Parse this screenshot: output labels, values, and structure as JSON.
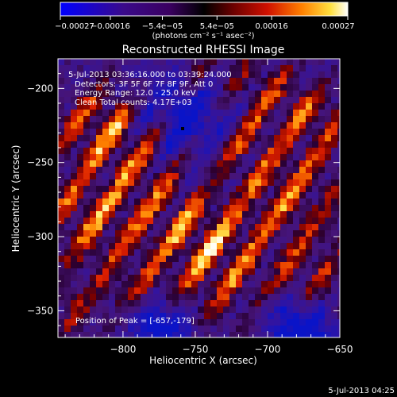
{
  "chart_data": {
    "type": "heatmap",
    "title": "Reconstructed RHESSI Image",
    "xlabel": "Heliocentric X (arcsec)",
    "ylabel": "Heliocentric Y (arcsec)",
    "xlim": [
      -845,
      -650
    ],
    "ylim": [
      -368,
      -180
    ],
    "x_ticks": [
      -800,
      -750,
      -700,
      -650
    ],
    "x_tick_labels": [
      "−800",
      "−750",
      "−700",
      "−650"
    ],
    "y_ticks": [
      -200,
      -250,
      -300,
      -350
    ],
    "y_tick_labels": [
      "−200",
      "−250",
      "−300",
      "−350"
    ],
    "colorbar": {
      "ticks": [
        -0.00027,
        -0.00016,
        -5.4e-05,
        5.4e-05,
        0.00016,
        0.00027
      ],
      "tick_labels": [
        "−0.00027",
        "−0.00016",
        "−5.4e−05",
        "5.4e−05",
        "0.00016",
        "0.00027"
      ],
      "unit_label": "(photons cm⁻² s⁻¹ asec⁻²)",
      "range": [
        -0.00027,
        0.00027
      ]
    },
    "annotations": [
      "5-Jul-2013 03:36:16.000 to 03:39:24.000",
      "Detectors: 3F 5F 6F 7F 8F 9F, Att 0",
      "Energy Range: 12.0 - 25.0 keV",
      "Clean    Total counts: 4.17E+03"
    ],
    "peak_label": "Position of Peak = [-657,-179]",
    "timestamp": "5-Jul-2013 04:25"
  }
}
